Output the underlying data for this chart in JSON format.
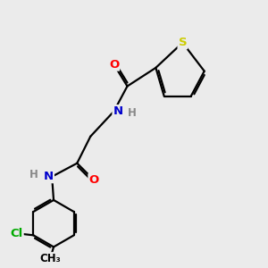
{
  "background_color": "#ebebeb",
  "atom_colors": {
    "C": "#000000",
    "N": "#0000cc",
    "O": "#ff0000",
    "S": "#cccc00",
    "Cl": "#00aa00",
    "H": "#888888"
  },
  "bond_color": "#000000",
  "bond_width": 1.6,
  "font_size": 9.5
}
